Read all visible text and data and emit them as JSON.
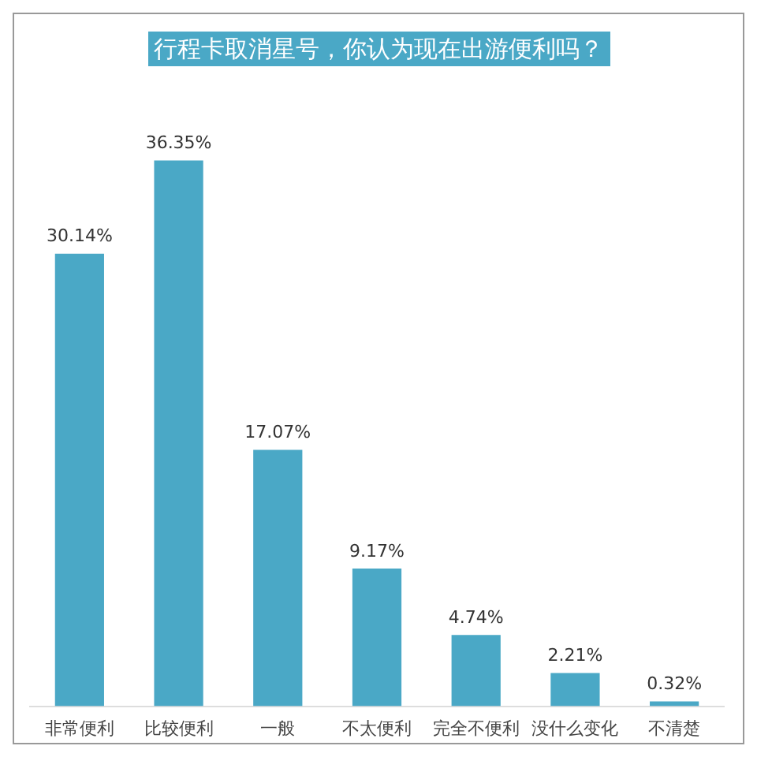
{
  "chart_data": {
    "type": "bar",
    "title": "行程卡取消星号，你认为现在出游便利吗？",
    "categories": [
      "非常便利",
      "比较便利",
      "一般",
      "不太便利",
      "完全不便利",
      "没什么变化",
      "不清楚"
    ],
    "values": [
      30.14,
      36.35,
      17.07,
      9.17,
      4.74,
      2.21,
      0.32
    ],
    "value_labels": [
      "30.14%",
      "36.35%",
      "17.07%",
      "9.17%",
      "4.74%",
      "2.21%",
      "0.32%"
    ],
    "color": "#4aa8c6",
    "tick_labels": "x",
    "grid": false,
    "legend": false
  }
}
